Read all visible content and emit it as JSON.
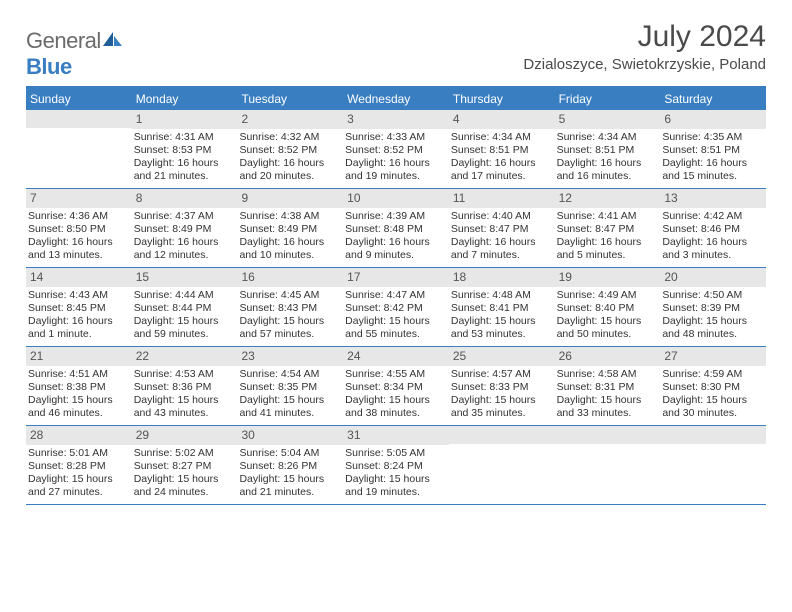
{
  "logo": {
    "part1": "General",
    "part2": "Blue"
  },
  "title": "July 2024",
  "location": "Dzialoszyce, Swietokrzyskie, Poland",
  "colors": {
    "accent": "#3a7ec2",
    "daybar": "#e7e7e7",
    "text": "#333333",
    "title": "#4a4a4a"
  },
  "weekdays": [
    "Sunday",
    "Monday",
    "Tuesday",
    "Wednesday",
    "Thursday",
    "Friday",
    "Saturday"
  ],
  "weeks": [
    [
      {
        "day": "",
        "sunrise": "",
        "sunset": "",
        "daylight": ""
      },
      {
        "day": "1",
        "sunrise": "Sunrise: 4:31 AM",
        "sunset": "Sunset: 8:53 PM",
        "daylight": "Daylight: 16 hours and 21 minutes."
      },
      {
        "day": "2",
        "sunrise": "Sunrise: 4:32 AM",
        "sunset": "Sunset: 8:52 PM",
        "daylight": "Daylight: 16 hours and 20 minutes."
      },
      {
        "day": "3",
        "sunrise": "Sunrise: 4:33 AM",
        "sunset": "Sunset: 8:52 PM",
        "daylight": "Daylight: 16 hours and 19 minutes."
      },
      {
        "day": "4",
        "sunrise": "Sunrise: 4:34 AM",
        "sunset": "Sunset: 8:51 PM",
        "daylight": "Daylight: 16 hours and 17 minutes."
      },
      {
        "day": "5",
        "sunrise": "Sunrise: 4:34 AM",
        "sunset": "Sunset: 8:51 PM",
        "daylight": "Daylight: 16 hours and 16 minutes."
      },
      {
        "day": "6",
        "sunrise": "Sunrise: 4:35 AM",
        "sunset": "Sunset: 8:51 PM",
        "daylight": "Daylight: 16 hours and 15 minutes."
      }
    ],
    [
      {
        "day": "7",
        "sunrise": "Sunrise: 4:36 AM",
        "sunset": "Sunset: 8:50 PM",
        "daylight": "Daylight: 16 hours and 13 minutes."
      },
      {
        "day": "8",
        "sunrise": "Sunrise: 4:37 AM",
        "sunset": "Sunset: 8:49 PM",
        "daylight": "Daylight: 16 hours and 12 minutes."
      },
      {
        "day": "9",
        "sunrise": "Sunrise: 4:38 AM",
        "sunset": "Sunset: 8:49 PM",
        "daylight": "Daylight: 16 hours and 10 minutes."
      },
      {
        "day": "10",
        "sunrise": "Sunrise: 4:39 AM",
        "sunset": "Sunset: 8:48 PM",
        "daylight": "Daylight: 16 hours and 9 minutes."
      },
      {
        "day": "11",
        "sunrise": "Sunrise: 4:40 AM",
        "sunset": "Sunset: 8:47 PM",
        "daylight": "Daylight: 16 hours and 7 minutes."
      },
      {
        "day": "12",
        "sunrise": "Sunrise: 4:41 AM",
        "sunset": "Sunset: 8:47 PM",
        "daylight": "Daylight: 16 hours and 5 minutes."
      },
      {
        "day": "13",
        "sunrise": "Sunrise: 4:42 AM",
        "sunset": "Sunset: 8:46 PM",
        "daylight": "Daylight: 16 hours and 3 minutes."
      }
    ],
    [
      {
        "day": "14",
        "sunrise": "Sunrise: 4:43 AM",
        "sunset": "Sunset: 8:45 PM",
        "daylight": "Daylight: 16 hours and 1 minute."
      },
      {
        "day": "15",
        "sunrise": "Sunrise: 4:44 AM",
        "sunset": "Sunset: 8:44 PM",
        "daylight": "Daylight: 15 hours and 59 minutes."
      },
      {
        "day": "16",
        "sunrise": "Sunrise: 4:45 AM",
        "sunset": "Sunset: 8:43 PM",
        "daylight": "Daylight: 15 hours and 57 minutes."
      },
      {
        "day": "17",
        "sunrise": "Sunrise: 4:47 AM",
        "sunset": "Sunset: 8:42 PM",
        "daylight": "Daylight: 15 hours and 55 minutes."
      },
      {
        "day": "18",
        "sunrise": "Sunrise: 4:48 AM",
        "sunset": "Sunset: 8:41 PM",
        "daylight": "Daylight: 15 hours and 53 minutes."
      },
      {
        "day": "19",
        "sunrise": "Sunrise: 4:49 AM",
        "sunset": "Sunset: 8:40 PM",
        "daylight": "Daylight: 15 hours and 50 minutes."
      },
      {
        "day": "20",
        "sunrise": "Sunrise: 4:50 AM",
        "sunset": "Sunset: 8:39 PM",
        "daylight": "Daylight: 15 hours and 48 minutes."
      }
    ],
    [
      {
        "day": "21",
        "sunrise": "Sunrise: 4:51 AM",
        "sunset": "Sunset: 8:38 PM",
        "daylight": "Daylight: 15 hours and 46 minutes."
      },
      {
        "day": "22",
        "sunrise": "Sunrise: 4:53 AM",
        "sunset": "Sunset: 8:36 PM",
        "daylight": "Daylight: 15 hours and 43 minutes."
      },
      {
        "day": "23",
        "sunrise": "Sunrise: 4:54 AM",
        "sunset": "Sunset: 8:35 PM",
        "daylight": "Daylight: 15 hours and 41 minutes."
      },
      {
        "day": "24",
        "sunrise": "Sunrise: 4:55 AM",
        "sunset": "Sunset: 8:34 PM",
        "daylight": "Daylight: 15 hours and 38 minutes."
      },
      {
        "day": "25",
        "sunrise": "Sunrise: 4:57 AM",
        "sunset": "Sunset: 8:33 PM",
        "daylight": "Daylight: 15 hours and 35 minutes."
      },
      {
        "day": "26",
        "sunrise": "Sunrise: 4:58 AM",
        "sunset": "Sunset: 8:31 PM",
        "daylight": "Daylight: 15 hours and 33 minutes."
      },
      {
        "day": "27",
        "sunrise": "Sunrise: 4:59 AM",
        "sunset": "Sunset: 8:30 PM",
        "daylight": "Daylight: 15 hours and 30 minutes."
      }
    ],
    [
      {
        "day": "28",
        "sunrise": "Sunrise: 5:01 AM",
        "sunset": "Sunset: 8:28 PM",
        "daylight": "Daylight: 15 hours and 27 minutes."
      },
      {
        "day": "29",
        "sunrise": "Sunrise: 5:02 AM",
        "sunset": "Sunset: 8:27 PM",
        "daylight": "Daylight: 15 hours and 24 minutes."
      },
      {
        "day": "30",
        "sunrise": "Sunrise: 5:04 AM",
        "sunset": "Sunset: 8:26 PM",
        "daylight": "Daylight: 15 hours and 21 minutes."
      },
      {
        "day": "31",
        "sunrise": "Sunrise: 5:05 AM",
        "sunset": "Sunset: 8:24 PM",
        "daylight": "Daylight: 15 hours and 19 minutes."
      },
      {
        "day": "",
        "sunrise": "",
        "sunset": "",
        "daylight": ""
      },
      {
        "day": "",
        "sunrise": "",
        "sunset": "",
        "daylight": ""
      },
      {
        "day": "",
        "sunrise": "",
        "sunset": "",
        "daylight": ""
      }
    ]
  ]
}
